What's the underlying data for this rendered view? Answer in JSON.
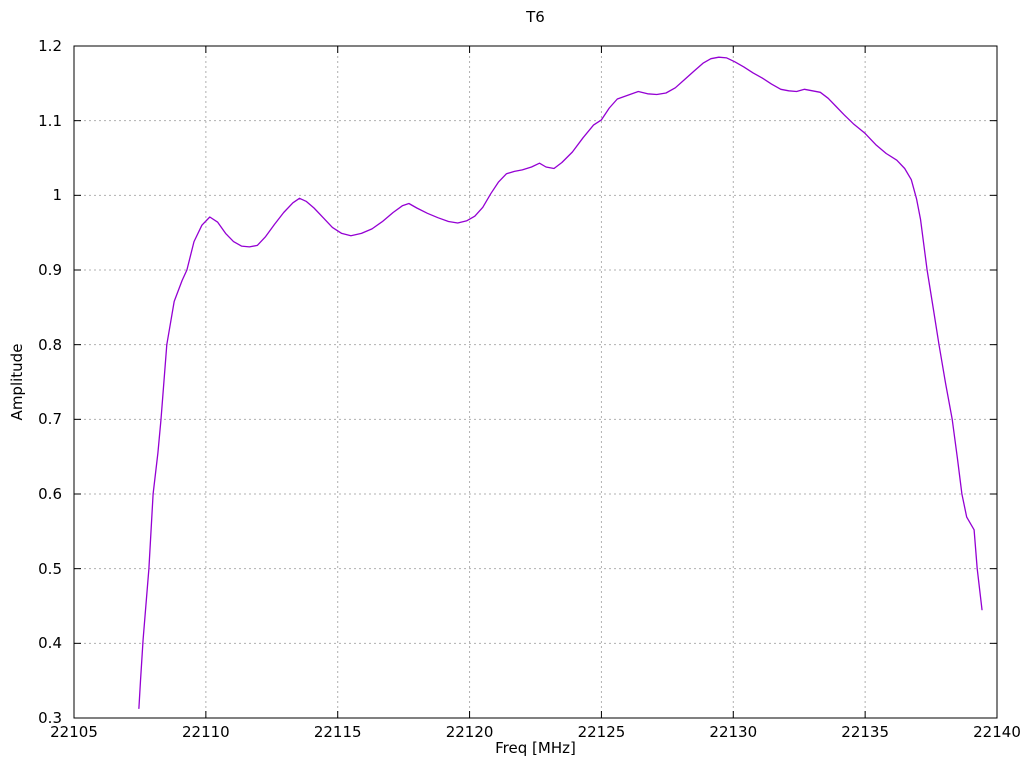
{
  "chart_data": {
    "type": "line",
    "title": "T6",
    "xlabel": "Freq [MHz]",
    "ylabel": "Amplitude",
    "xlim": [
      22105,
      22140
    ],
    "ylim": [
      0.3,
      1.2
    ],
    "x_ticks": [
      22105,
      22110,
      22115,
      22120,
      22125,
      22130,
      22135,
      22140
    ],
    "x_tick_labels": [
      "22105",
      "22110",
      "22115",
      "22120",
      "22125",
      "22130",
      "22135",
      "22140"
    ],
    "y_ticks": [
      0.3,
      0.4,
      0.5,
      0.6,
      0.7,
      0.8,
      0.9,
      1.0,
      1.1,
      1.2
    ],
    "y_tick_labels": [
      "0.3",
      "0.4",
      "0.5",
      "0.6",
      "0.7",
      "0.8",
      "0.9",
      "1",
      "1.1",
      "1.2"
    ],
    "grid": true,
    "grid_style": "dotted",
    "legend": "none",
    "colors": {
      "line": "#9400d3",
      "grid": "#b0b0b0",
      "frame": "#000000",
      "background": "#ffffff"
    },
    "series": [
      {
        "name": "T6",
        "points": [
          [
            22107.46,
            0.313
          ],
          [
            22107.52,
            0.35
          ],
          [
            22107.62,
            0.405
          ],
          [
            22107.84,
            0.5
          ],
          [
            22108.0,
            0.6
          ],
          [
            22108.18,
            0.655
          ],
          [
            22108.3,
            0.7
          ],
          [
            22108.52,
            0.8
          ],
          [
            22108.8,
            0.858
          ],
          [
            22109.1,
            0.886
          ],
          [
            22109.28,
            0.9
          ],
          [
            22109.55,
            0.938
          ],
          [
            22109.85,
            0.96
          ],
          [
            22110.15,
            0.971
          ],
          [
            22110.45,
            0.964
          ],
          [
            22110.75,
            0.949
          ],
          [
            22111.05,
            0.938
          ],
          [
            22111.35,
            0.932
          ],
          [
            22111.65,
            0.931
          ],
          [
            22111.95,
            0.933
          ],
          [
            22112.25,
            0.944
          ],
          [
            22112.6,
            0.961
          ],
          [
            22112.95,
            0.977
          ],
          [
            22113.3,
            0.99
          ],
          [
            22113.55,
            0.996
          ],
          [
            22113.8,
            0.992
          ],
          [
            22114.1,
            0.983
          ],
          [
            22114.45,
            0.97
          ],
          [
            22114.8,
            0.957
          ],
          [
            22115.15,
            0.949
          ],
          [
            22115.5,
            0.946
          ],
          [
            22115.9,
            0.949
          ],
          [
            22116.3,
            0.955
          ],
          [
            22116.7,
            0.965
          ],
          [
            22117.1,
            0.977
          ],
          [
            22117.45,
            0.986
          ],
          [
            22117.7,
            0.989
          ],
          [
            22118.0,
            0.983
          ],
          [
            22118.4,
            0.976
          ],
          [
            22118.8,
            0.97
          ],
          [
            22119.2,
            0.965
          ],
          [
            22119.55,
            0.963
          ],
          [
            22119.9,
            0.966
          ],
          [
            22120.2,
            0.972
          ],
          [
            22120.5,
            0.984
          ],
          [
            22120.8,
            1.002
          ],
          [
            22121.1,
            1.018
          ],
          [
            22121.4,
            1.029
          ],
          [
            22121.7,
            1.032
          ],
          [
            22122.0,
            1.034
          ],
          [
            22122.35,
            1.038
          ],
          [
            22122.65,
            1.043
          ],
          [
            22122.9,
            1.038
          ],
          [
            22123.2,
            1.036
          ],
          [
            22123.5,
            1.044
          ],
          [
            22123.9,
            1.058
          ],
          [
            22124.3,
            1.077
          ],
          [
            22124.7,
            1.094
          ],
          [
            22125.0,
            1.101
          ],
          [
            22125.3,
            1.117
          ],
          [
            22125.6,
            1.129
          ],
          [
            22126.0,
            1.134
          ],
          [
            22126.4,
            1.139
          ],
          [
            22126.75,
            1.136
          ],
          [
            22127.1,
            1.135
          ],
          [
            22127.45,
            1.137
          ],
          [
            22127.8,
            1.144
          ],
          [
            22128.15,
            1.155
          ],
          [
            22128.5,
            1.166
          ],
          [
            22128.85,
            1.177
          ],
          [
            22129.15,
            1.183
          ],
          [
            22129.45,
            1.185
          ],
          [
            22129.75,
            1.184
          ],
          [
            22130.05,
            1.179
          ],
          [
            22130.4,
            1.172
          ],
          [
            22130.75,
            1.164
          ],
          [
            22131.1,
            1.157
          ],
          [
            22131.45,
            1.149
          ],
          [
            22131.8,
            1.142
          ],
          [
            22132.1,
            1.14
          ],
          [
            22132.4,
            1.139
          ],
          [
            22132.7,
            1.142
          ],
          [
            22133.0,
            1.14
          ],
          [
            22133.3,
            1.138
          ],
          [
            22133.6,
            1.13
          ],
          [
            22133.9,
            1.119
          ],
          [
            22134.2,
            1.108
          ],
          [
            22134.55,
            1.096
          ],
          [
            22135.0,
            1.083
          ],
          [
            22135.4,
            1.068
          ],
          [
            22135.8,
            1.056
          ],
          [
            22136.2,
            1.047
          ],
          [
            22136.5,
            1.036
          ],
          [
            22136.75,
            1.021
          ],
          [
            22136.95,
            0.995
          ],
          [
            22137.1,
            0.968
          ],
          [
            22137.35,
            0.9
          ],
          [
            22137.6,
            0.845
          ],
          [
            22137.8,
            0.8
          ],
          [
            22138.05,
            0.748
          ],
          [
            22138.3,
            0.7
          ],
          [
            22138.5,
            0.648
          ],
          [
            22138.67,
            0.6
          ],
          [
            22138.85,
            0.569
          ],
          [
            22139.13,
            0.552
          ],
          [
            22139.25,
            0.5
          ],
          [
            22139.43,
            0.445
          ]
        ]
      }
    ]
  }
}
